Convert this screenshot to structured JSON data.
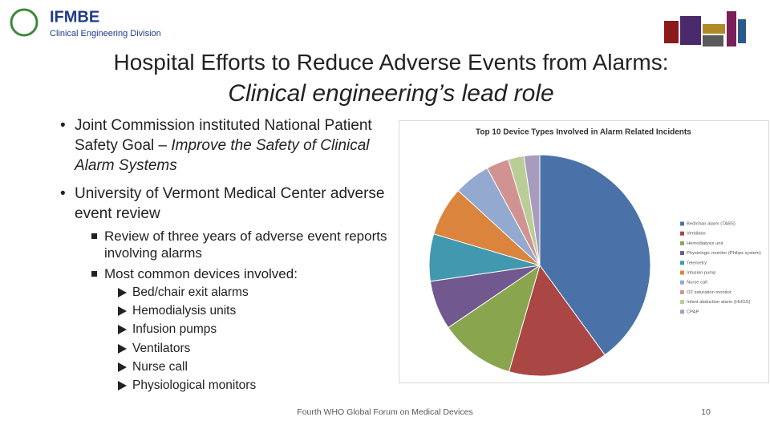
{
  "header": {
    "org": "IFMBE",
    "division": "Clinical Engineering Division"
  },
  "title": {
    "main": "Hospital Efforts to Reduce Adverse Events from Alarms:",
    "sub": "Clinical engineering’s lead role"
  },
  "bullets": [
    {
      "text": "Joint Commission instituted National Patient Safety Goal – ",
      "emphasis": "Improve the Safety of Clinical Alarm Systems"
    },
    {
      "text": "University of Vermont Medical Center adverse event review"
    }
  ],
  "sub_bullets": [
    "Review of three years of adverse event reports involving alarms",
    "Most common devices involved:"
  ],
  "devices": [
    "Bed/chair exit alarms",
    "Hemodialysis units",
    "Infusion pumps",
    "Ventilators",
    "Nurse call",
    "Physiological monitors"
  ],
  "chart_data": {
    "type": "pie",
    "title": "Top 10 Device Types Involved in Alarm Related Incidents",
    "categories": [
      "Bed/chair alarm (TABS)",
      "Ventilator",
      "Hemodialysis unit",
      "Physiologic monitor (Philips system)",
      "Telemetry",
      "Infusion pump",
      "Nurse call",
      "O2 saturation monitor",
      "Infant abduction alarm (HUGS)",
      "CPAP"
    ],
    "values": [
      40,
      14.5,
      11,
      7.2,
      6.9,
      7.2,
      5.3,
      3.3,
      2.3,
      2.3
    ],
    "colors": [
      "#4a72a8",
      "#aa4643",
      "#89a54e",
      "#71588f",
      "#4198af",
      "#db843d",
      "#93a9cf",
      "#d19392",
      "#b9cd96",
      "#a99bbd"
    ],
    "legend": "right"
  },
  "footer": {
    "text": "Fourth WHO Global Forum on Medical Devices",
    "page": "10"
  }
}
